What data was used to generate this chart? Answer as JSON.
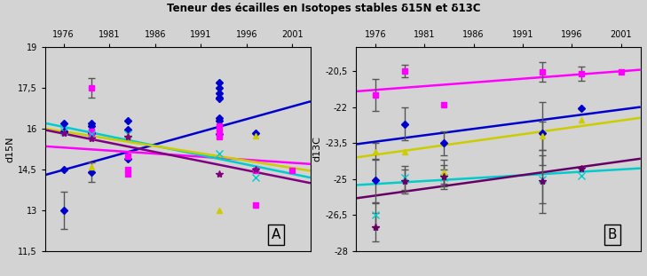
{
  "title": "Teneur des écailles en Isotopes stables δ15N et δ13C",
  "ylabel_A": "d15N",
  "ylabel_B": "d13C",
  "xlim": [
    1974,
    2003
  ],
  "xticks": [
    1976,
    1981,
    1986,
    1991,
    1996,
    2001
  ],
  "ylim_A": [
    11.5,
    19
  ],
  "yticks_A": [
    11.5,
    13,
    14.5,
    16,
    17.5,
    19
  ],
  "ylim_B": [
    -28,
    -19.5
  ],
  "yticks_B": [
    -28,
    -26.5,
    -25,
    -23.5,
    -22,
    -20.5
  ],
  "series_A": [
    {
      "key": "blue_diamond",
      "color": "#0000CD",
      "marker": "D",
      "points": [
        [
          1976,
          13.0
        ],
        [
          1976,
          14.5
        ],
        [
          1976,
          15.9
        ],
        [
          1976,
          16.2
        ],
        [
          1979,
          14.4
        ],
        [
          1979,
          15.85
        ],
        [
          1979,
          16.1
        ],
        [
          1979,
          16.2
        ],
        [
          1983,
          14.9
        ],
        [
          1983,
          15.95
        ],
        [
          1983,
          16.3
        ],
        [
          1993,
          15.8
        ],
        [
          1993,
          17.5
        ],
        [
          1993,
          17.7
        ],
        [
          1993,
          17.3
        ],
        [
          1993,
          17.15
        ],
        [
          1993,
          17.1
        ],
        [
          1993,
          16.3
        ],
        [
          1993,
          16.4
        ],
        [
          1997,
          15.85
        ]
      ],
      "errors": [
        [
          1976,
          13.0,
          0.7
        ],
        [
          1979,
          14.4,
          0.35
        ]
      ],
      "trend": [
        1974,
        14.3,
        2003,
        17.0
      ],
      "markersize": 4
    },
    {
      "key": "magenta_square",
      "color": "#FF00FF",
      "marker": "s",
      "points": [
        [
          1979,
          17.5
        ],
        [
          1979,
          15.9
        ],
        [
          1979,
          15.7
        ],
        [
          1983,
          15.0
        ],
        [
          1983,
          14.5
        ],
        [
          1983,
          14.35
        ],
        [
          1993,
          16.1
        ],
        [
          1993,
          15.9
        ],
        [
          1993,
          15.7
        ],
        [
          1997,
          13.2
        ],
        [
          1997,
          14.45
        ],
        [
          2001,
          14.45
        ]
      ],
      "errors": [
        [
          1979,
          17.5,
          0.35
        ]
      ],
      "trend": [
        1974,
        15.35,
        2003,
        14.7
      ],
      "markersize": 5
    },
    {
      "key": "cyan_cross",
      "color": "#00CCCC",
      "marker": "x",
      "points": [
        [
          1976,
          15.9
        ],
        [
          1979,
          15.8
        ],
        [
          1983,
          15.8
        ],
        [
          1993,
          15.1
        ],
        [
          1997,
          14.2
        ]
      ],
      "errors": [],
      "trend": [
        1974,
        16.2,
        2003,
        14.2
      ],
      "markersize": 6
    },
    {
      "key": "yellow_triangle",
      "color": "#CCCC00",
      "marker": "^",
      "points": [
        [
          1979,
          14.6
        ],
        [
          1983,
          15.75
        ],
        [
          1993,
          13.0
        ],
        [
          1997,
          15.75
        ]
      ],
      "errors": [],
      "trend": [
        1974,
        16.0,
        2003,
        14.45
      ],
      "markersize": 5
    },
    {
      "key": "purple_star",
      "color": "#800080",
      "marker": "*",
      "points": [
        [
          1976,
          15.85
        ],
        [
          1979,
          15.65
        ],
        [
          1983,
          15.7
        ],
        [
          1993,
          14.35
        ],
        [
          1997,
          14.5
        ]
      ],
      "errors": [],
      "trend": [
        1974,
        15.95,
        2003,
        14.0
      ],
      "markersize": 6
    }
  ],
  "series_B": [
    {
      "key": "blue_diamond",
      "color": "#0000CD",
      "marker": "D",
      "points": [
        [
          1976,
          -25.05
        ],
        [
          1979,
          -22.7
        ],
        [
          1983,
          -23.5
        ],
        [
          1993,
          -23.1
        ],
        [
          1997,
          -22.05
        ]
      ],
      "errors": [
        [
          1976,
          -25.05,
          0.9
        ],
        [
          1979,
          -22.7,
          0.7
        ],
        [
          1983,
          -23.5,
          0.5
        ],
        [
          1993,
          -23.1,
          1.3
        ]
      ],
      "trend": [
        1974,
        -23.55,
        2003,
        -22.0
      ],
      "markersize": 4
    },
    {
      "key": "magenta_square",
      "color": "#FF00FF",
      "marker": "s",
      "points": [
        [
          1976,
          -21.5
        ],
        [
          1979,
          -20.5
        ],
        [
          1983,
          -21.9
        ],
        [
          1993,
          -20.55
        ],
        [
          1997,
          -20.6
        ],
        [
          2001,
          -20.55
        ]
      ],
      "errors": [
        [
          1976,
          -21.5,
          0.65
        ],
        [
          1979,
          -20.5,
          0.25
        ],
        [
          1993,
          -20.55,
          0.4
        ],
        [
          1997,
          -20.6,
          0.3
        ]
      ],
      "trend": [
        1974,
        -21.35,
        2003,
        -20.45
      ],
      "markersize": 5
    },
    {
      "key": "cyan_cross",
      "color": "#00CCCC",
      "marker": "x",
      "points": [
        [
          1976,
          -26.5
        ],
        [
          1979,
          -24.95
        ],
        [
          1983,
          -24.95
        ],
        [
          1993,
          -25.0
        ],
        [
          1997,
          -24.85
        ]
      ],
      "errors": [
        [
          1976,
          -26.5,
          0.5
        ],
        [
          1979,
          -24.95,
          0.5
        ],
        [
          1983,
          -24.95,
          0.35
        ],
        [
          1993,
          -25.0,
          1.0
        ]
      ],
      "trend": [
        1974,
        -25.25,
        2003,
        -24.55
      ],
      "markersize": 6
    },
    {
      "key": "yellow_triangle",
      "color": "#CCCC00",
      "marker": "^",
      "points": [
        [
          1976,
          -23.85
        ],
        [
          1979,
          -23.85
        ],
        [
          1983,
          -24.7
        ],
        [
          1993,
          -23.2
        ],
        [
          1997,
          -22.55
        ]
      ],
      "errors": [
        [
          1976,
          -23.85,
          0.35
        ],
        [
          1983,
          -24.7,
          0.5
        ],
        [
          1993,
          -23.2,
          0.6
        ]
      ],
      "trend": [
        1974,
        -24.1,
        2003,
        -22.45
      ],
      "markersize": 5
    },
    {
      "key": "purple_star",
      "color": "#660066",
      "marker": "*",
      "points": [
        [
          1976,
          -27.0
        ],
        [
          1979,
          -25.1
        ],
        [
          1983,
          -24.9
        ],
        [
          1993,
          -25.1
        ],
        [
          1997,
          -24.55
        ]
      ],
      "errors": [
        [
          1976,
          -27.0,
          0.6
        ],
        [
          1979,
          -25.1,
          0.5
        ],
        [
          1983,
          -24.9,
          0.5
        ],
        [
          1993,
          -25.1,
          1.3
        ]
      ],
      "trend": [
        1974,
        -25.8,
        2003,
        -24.15
      ],
      "markersize": 6
    }
  ],
  "label_A": "A",
  "label_B": "B",
  "bg_color": "#d3d3d3"
}
